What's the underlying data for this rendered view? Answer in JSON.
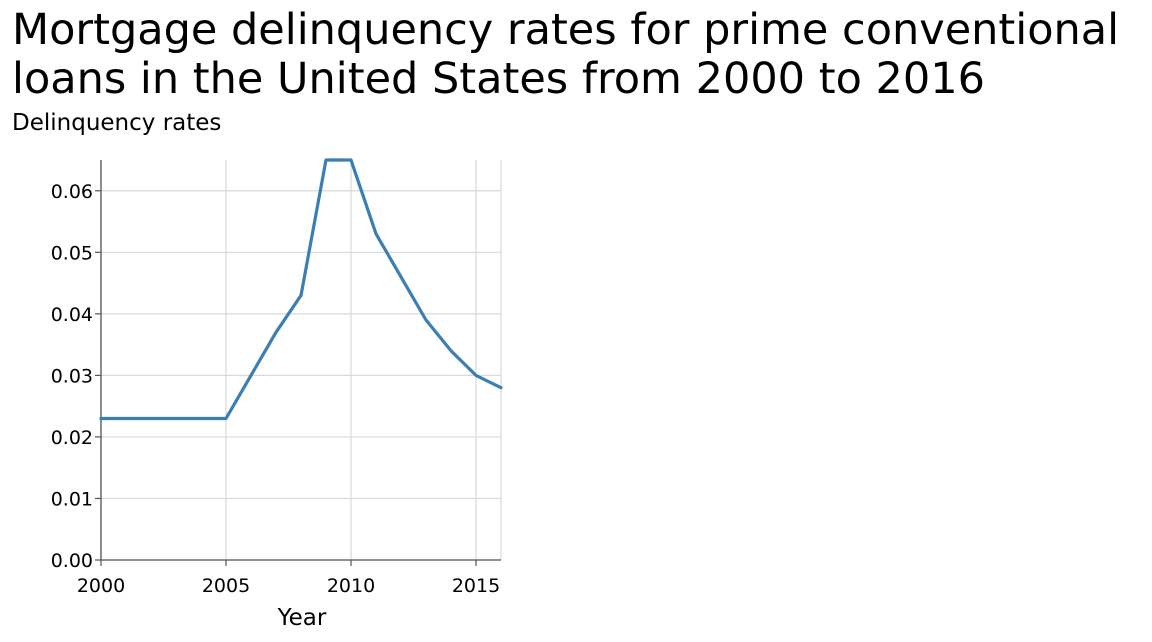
{
  "chart_data": {
    "type": "line",
    "title": "Mortgage delinquency rates for prime conventional loans in the United States from 2000 to 2016",
    "xlabel": "Year",
    "ylabel": "Delinquency rates",
    "xlim": [
      2000,
      2016
    ],
    "ylim": [
      0,
      0.065
    ],
    "x_ticks": [
      2000,
      2005,
      2010,
      2015
    ],
    "y_ticks": [
      "0.00",
      "0.01",
      "0.02",
      "0.03",
      "0.04",
      "0.05",
      "0.06"
    ],
    "grid": true,
    "series": [
      {
        "color": "#3a7fb3",
        "x": [
          2000,
          2001,
          2002,
          2003,
          2004,
          2005,
          2006,
          2007,
          2008,
          2009,
          2010,
          2011,
          2012,
          2013,
          2014,
          2015,
          2016
        ],
        "y": [
          0.023,
          0.023,
          0.023,
          0.023,
          0.023,
          0.023,
          0.03,
          0.037,
          0.043,
          0.065,
          0.065,
          0.053,
          0.046,
          0.039,
          0.034,
          0.03,
          0.028
        ]
      }
    ]
  }
}
